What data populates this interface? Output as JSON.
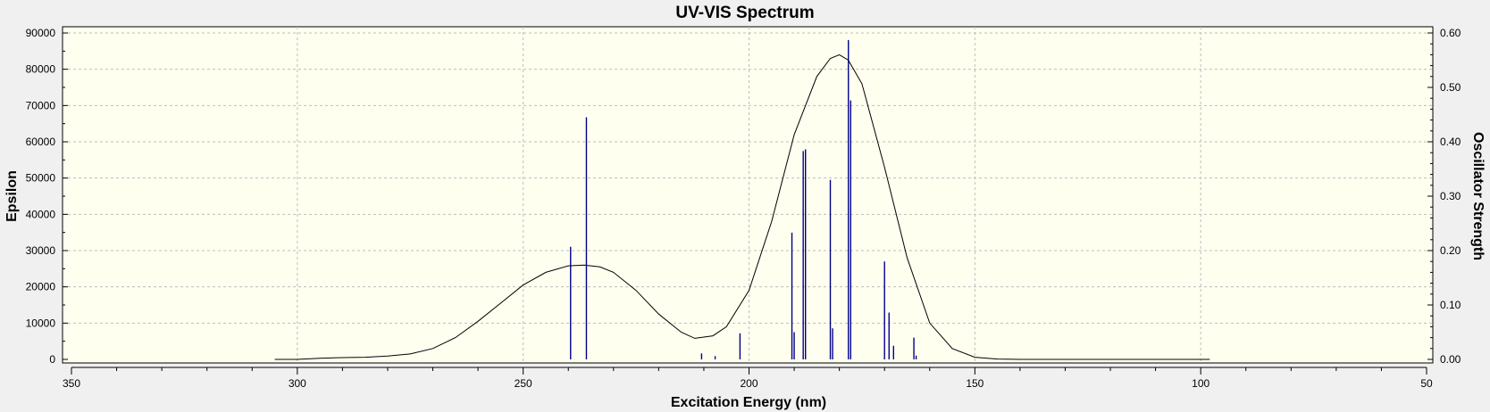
{
  "chart_data": {
    "type": "line",
    "title": "UV-VIS Spectrum",
    "xlabel": "Excitation Energy (nm)",
    "ylabel": "Epsilon",
    "y2label": "Oscillator Strength",
    "xlim": [
      350,
      50
    ],
    "ylim": [
      0,
      90000
    ],
    "y2lim": [
      0,
      0.6
    ],
    "x_ticks": [
      "350",
      "300",
      "250",
      "200",
      "150",
      "100",
      "50"
    ],
    "y_ticks": [
      "0",
      "10000",
      "20000",
      "30000",
      "40000",
      "50000",
      "60000",
      "70000",
      "80000",
      "90000"
    ],
    "y2_ticks": [
      "0.00",
      "0.10",
      "0.20",
      "0.30",
      "0.40",
      "0.50",
      "0.60"
    ],
    "grid": true,
    "colors": {
      "plot_background": "#fffff0",
      "spectrum_line": "#000000",
      "stick_color": "#00008b",
      "frame": "#000000",
      "grid": "#bdbdbd"
    },
    "series": [
      {
        "type": "line",
        "x": [
          305,
          300,
          295,
          290,
          285,
          280,
          275,
          270,
          265,
          260,
          255,
          250,
          245,
          240,
          236.5,
          233,
          230,
          225,
          220,
          215,
          212,
          208,
          205,
          200,
          195,
          190,
          185,
          182,
          180,
          178,
          175,
          170,
          165,
          160,
          155,
          150,
          145,
          140,
          130,
          120,
          110,
          100,
          98
        ],
        "y": [
          0,
          0,
          300,
          500,
          600,
          900,
          1500,
          3000,
          6000,
          10500,
          15500,
          20500,
          24000,
          25800,
          26000,
          25500,
          24000,
          19000,
          12500,
          7500,
          5800,
          6500,
          9000,
          19000,
          38000,
          62000,
          78000,
          83000,
          84000,
          82500,
          76000,
          53000,
          28000,
          10000,
          3000,
          600,
          100,
          0,
          0,
          0,
          0,
          0,
          0
        ]
      },
      {
        "type": "stick",
        "x": [
          239.5,
          236,
          210.5,
          207.5,
          202,
          190.5,
          190,
          188,
          187.5,
          182,
          181.5,
          178,
          177.5,
          170,
          169,
          168,
          163.5,
          163
        ],
        "y": [
          0.207,
          0.445,
          0.011,
          0.006,
          0.048,
          0.233,
          0.05,
          0.383,
          0.386,
          0.33,
          0.057,
          0.587,
          0.476,
          0.18,
          0.086,
          0.025,
          0.04,
          0.007
        ]
      }
    ]
  }
}
